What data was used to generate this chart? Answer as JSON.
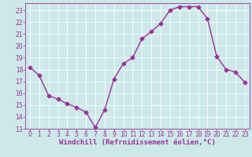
{
  "x": [
    0,
    1,
    2,
    3,
    4,
    5,
    6,
    7,
    8,
    9,
    10,
    11,
    12,
    13,
    14,
    15,
    16,
    17,
    18,
    19,
    20,
    21,
    22,
    23
  ],
  "y": [
    18.2,
    17.5,
    15.8,
    15.5,
    15.1,
    14.8,
    14.4,
    13.1,
    14.6,
    17.2,
    18.5,
    19.0,
    20.6,
    21.2,
    21.9,
    23.0,
    23.3,
    23.3,
    23.3,
    22.3,
    19.1,
    18.0,
    17.8,
    16.9
  ],
  "line_color": "#993399",
  "marker": "D",
  "markersize": 2.5,
  "linewidth": 1.0,
  "bg_color": "#cce8e8",
  "grid_color": "#ffffff",
  "xlabel": "Windchill (Refroidissement éolien,°C)",
  "xlabel_color": "#993399",
  "tick_color": "#993399",
  "xlim": [
    -0.5,
    23.5
  ],
  "ylim": [
    13,
    23.6
  ],
  "yticks": [
    13,
    14,
    15,
    16,
    17,
    18,
    19,
    20,
    21,
    22,
    23
  ],
  "xticks": [
    0,
    1,
    2,
    3,
    4,
    5,
    6,
    7,
    8,
    9,
    10,
    11,
    12,
    13,
    14,
    15,
    16,
    17,
    18,
    19,
    20,
    21,
    22,
    23
  ],
  "axis_fontsize": 5.5,
  "xlabel_fontsize": 6.5
}
